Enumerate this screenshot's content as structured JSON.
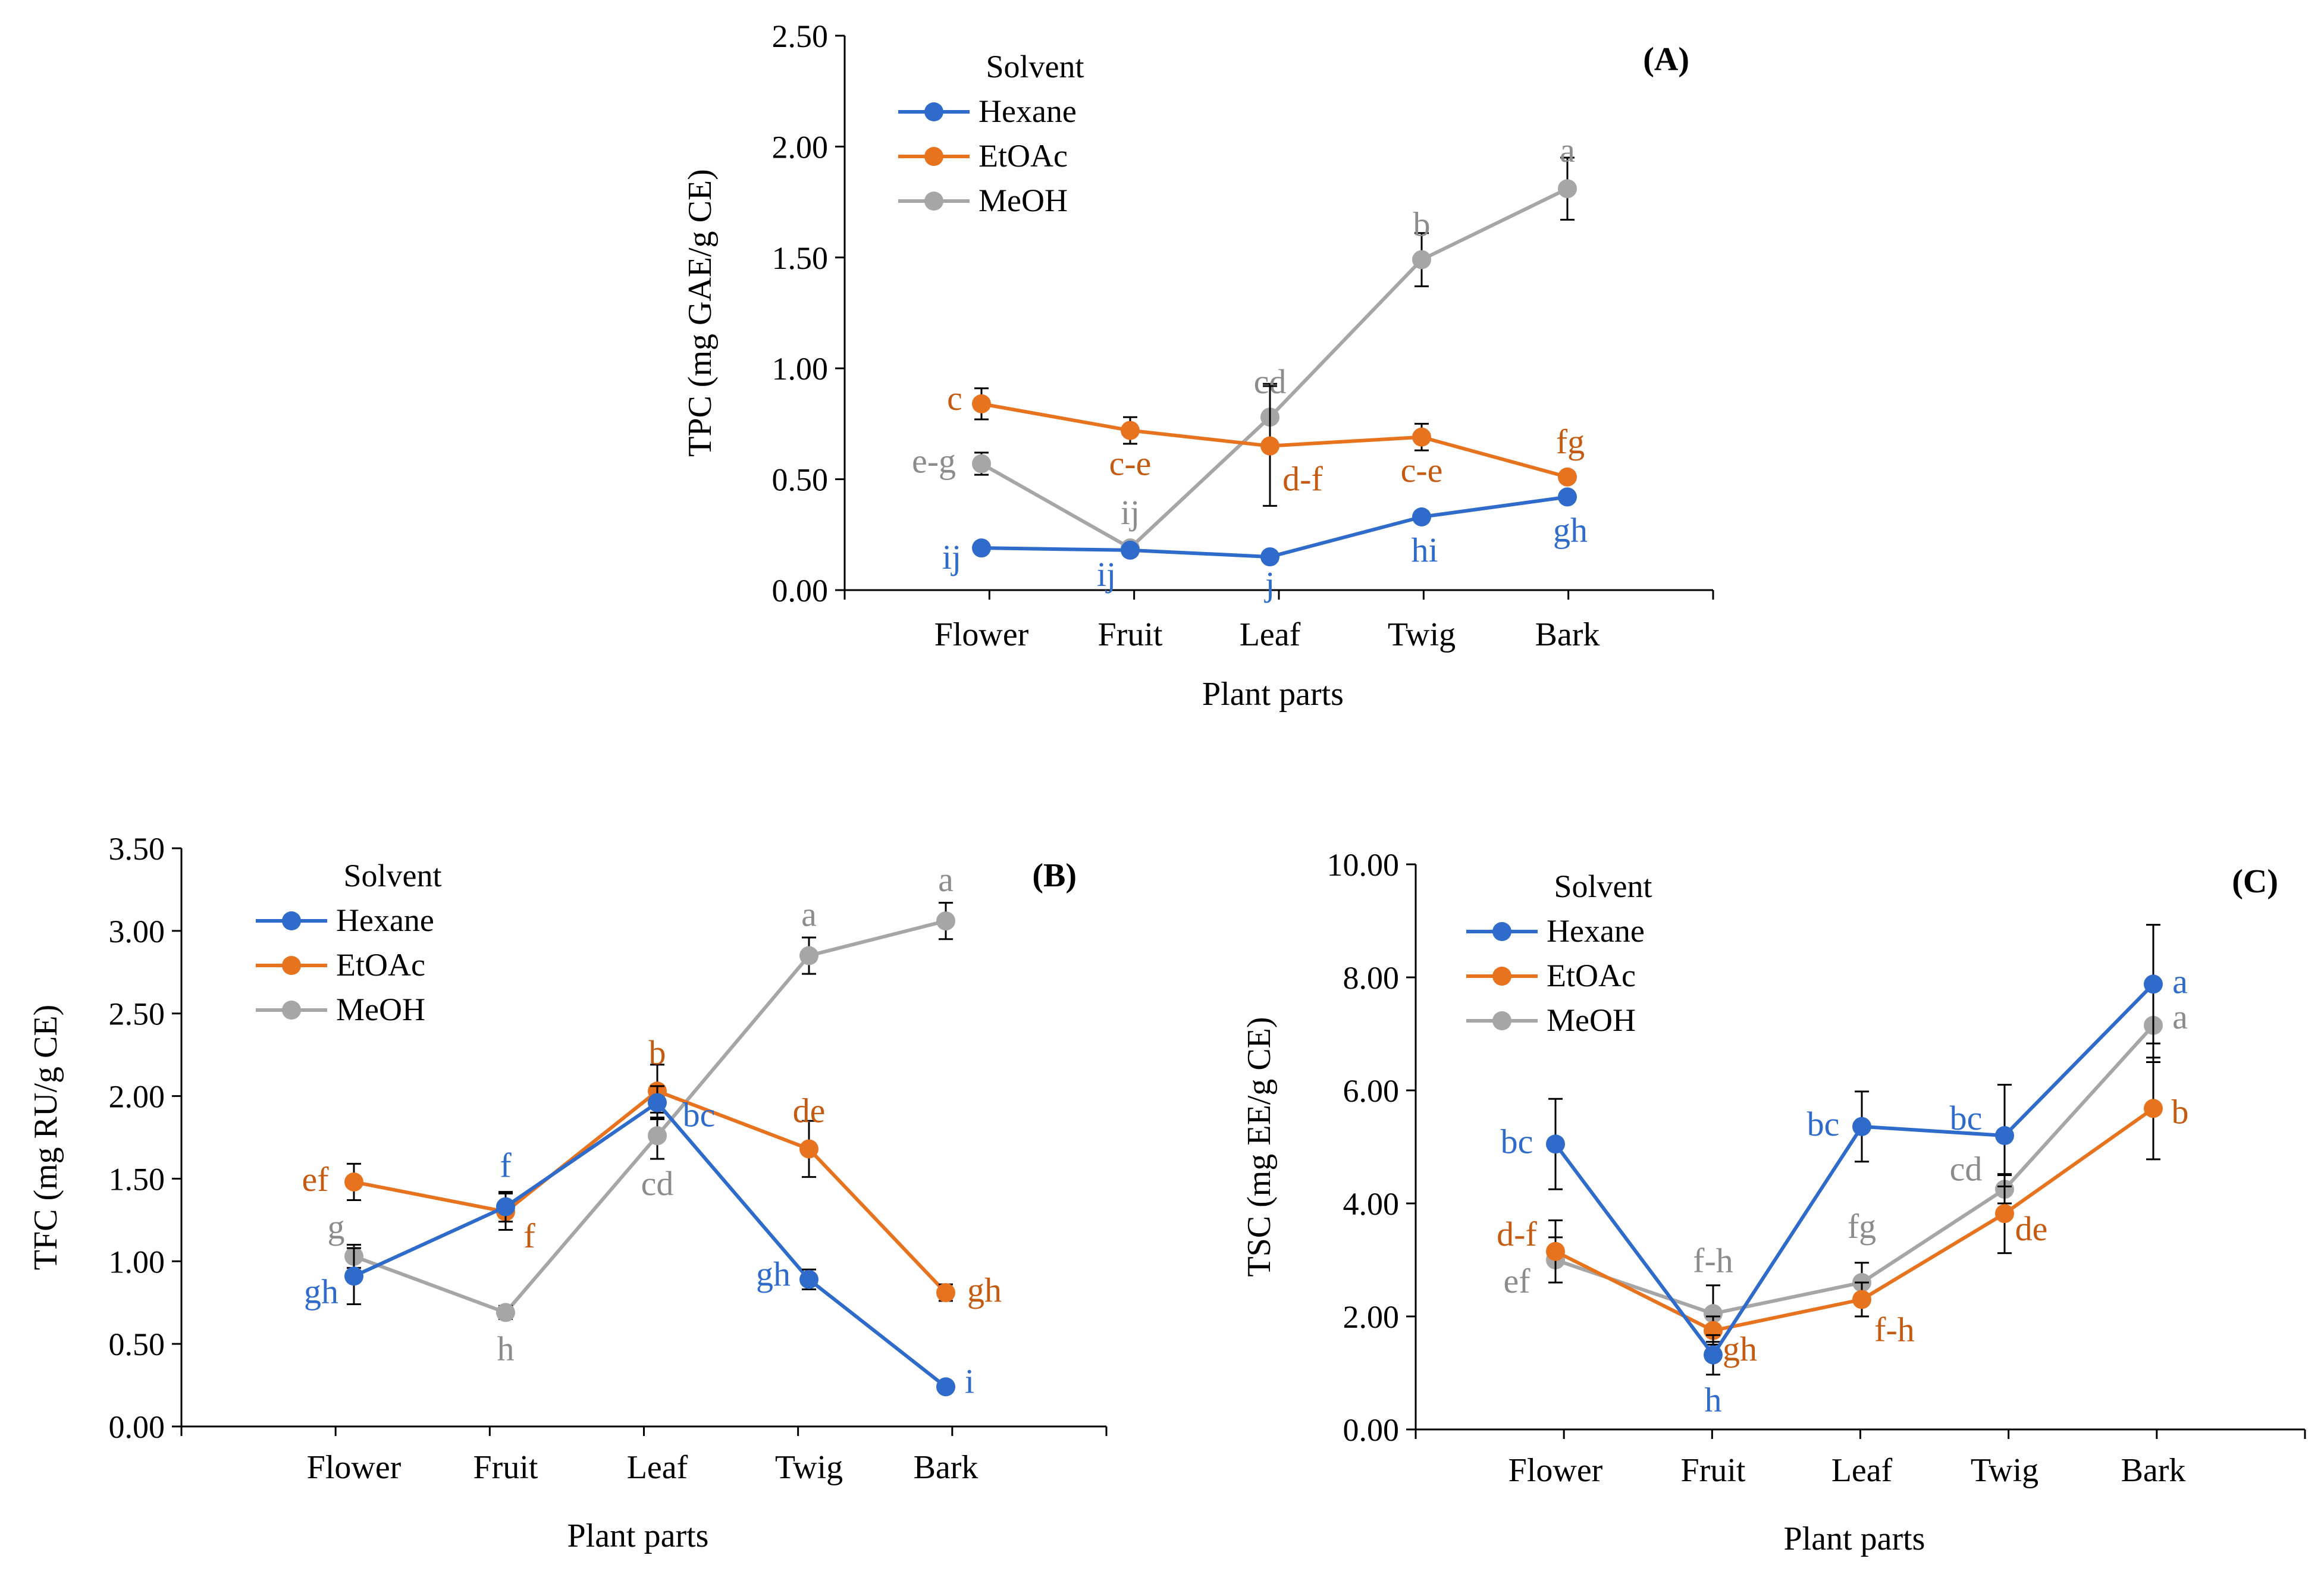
{
  "colors": {
    "Hexane": "#2E6BCB",
    "EtOAc": "#E8731F",
    "MeOH": "#A6A6A6",
    "axis": "#000000",
    "label_EtOAc": "#C55A11"
  },
  "chart_data": [
    {
      "id": "A",
      "type": "line",
      "panel_label": "(A)",
      "ylabel": "TPC (mg GAE/g CE)",
      "xlabel": "Plant parts",
      "ylim": [
        0,
        2.5
      ],
      "yticks": [
        "0.00",
        "0.50",
        "1.00",
        "1.50",
        "2.00",
        "2.50"
      ],
      "categories": [
        "Flower",
        "Fruit",
        "Leaf",
        "Twig",
        "Bark"
      ],
      "legend_title": "Solvent",
      "legend_position": "top-left",
      "series": [
        {
          "name": "Hexane",
          "values": [
            0.19,
            0.18,
            0.15,
            0.33,
            0.42
          ],
          "errors": [
            0.02,
            0.02,
            0.02,
            0.02,
            0.02
          ],
          "letters": [
            "ij",
            "ij",
            "j",
            "hi",
            "gh"
          ]
        },
        {
          "name": "EtOAc",
          "values": [
            0.84,
            0.72,
            0.65,
            0.69,
            0.51
          ],
          "errors": [
            0.07,
            0.06,
            0.27,
            0.06,
            0.02
          ],
          "letters": [
            "c",
            "c-e",
            "d-f",
            "c-e",
            "fg"
          ]
        },
        {
          "name": "MeOH",
          "values": [
            0.57,
            0.19,
            0.78,
            1.49,
            1.81
          ],
          "errors": [
            0.05,
            0.02,
            0.15,
            0.12,
            0.14
          ],
          "letters": [
            "e-g",
            "ij",
            "cd",
            "b",
            "a"
          ]
        }
      ]
    },
    {
      "id": "B",
      "type": "line",
      "panel_label": "(B)",
      "ylabel": "TFC (mg RU/g CE)",
      "xlabel": "Plant parts",
      "ylim": [
        0,
        3.5
      ],
      "yticks": [
        "0.00",
        "0.50",
        "1.00",
        "1.50",
        "2.00",
        "2.50",
        "3.00",
        "3.50"
      ],
      "categories": [
        "Flower",
        "Fruit",
        "Leaf",
        "Twig",
        "Bark"
      ],
      "legend_title": "Solvent",
      "legend_position": "top-left",
      "series": [
        {
          "name": "Hexane",
          "values": [
            0.91,
            1.33,
            1.96,
            0.89,
            0.24
          ],
          "errors": [
            0.17,
            0.09,
            0.1,
            0.06,
            0.02
          ],
          "letters": [
            "gh",
            "f",
            "bc",
            "gh",
            "i"
          ]
        },
        {
          "name": "EtOAc",
          "values": [
            1.48,
            1.3,
            2.03,
            1.68,
            0.81
          ],
          "errors": [
            0.11,
            0.11,
            0.16,
            0.17,
            0.05
          ],
          "letters": [
            "ef",
            "f",
            "b",
            "de",
            "gh"
          ]
        },
        {
          "name": "MeOH",
          "values": [
            1.03,
            0.69,
            1.76,
            2.85,
            3.06
          ],
          "errors": [
            0.07,
            0.04,
            0.14,
            0.11,
            0.11
          ],
          "letters": [
            "g",
            "h",
            "cd",
            "a",
            "a"
          ]
        }
      ]
    },
    {
      "id": "C",
      "type": "line",
      "panel_label": "(C)",
      "ylabel": "TSC (mg EE/g CE)",
      "xlabel": "Plant parts",
      "ylim": [
        0,
        10
      ],
      "yticks": [
        "0.00",
        "2.00",
        "4.00",
        "6.00",
        "8.00",
        "10.00"
      ],
      "categories": [
        "Flower",
        "Fruit",
        "Leaf",
        "Twig",
        "Bark"
      ],
      "legend_title": "Solvent",
      "legend_position": "top-left",
      "series": [
        {
          "name": "Hexane",
          "values": [
            5.05,
            1.32,
            5.36,
            5.2,
            7.88
          ],
          "errors": [
            0.8,
            0.35,
            0.62,
            0.9,
            1.05
          ],
          "letters": [
            "bc",
            "h",
            "bc",
            "bc",
            "a"
          ]
        },
        {
          "name": "EtOAc",
          "values": [
            3.15,
            1.75,
            2.3,
            3.82,
            5.68
          ],
          "errors": [
            0.55,
            0.25,
            0.3,
            0.7,
            0.9
          ],
          "letters": [
            "d-f",
            "gh",
            "f-h",
            "de",
            "b"
          ]
        },
        {
          "name": "MeOH",
          "values": [
            3.0,
            2.05,
            2.6,
            4.25,
            7.15
          ],
          "errors": [
            0.4,
            0.5,
            0.35,
            0.25,
            0.65
          ],
          "letters": [
            "ef",
            "f-h",
            "fg",
            "cd",
            "a"
          ]
        }
      ]
    }
  ]
}
